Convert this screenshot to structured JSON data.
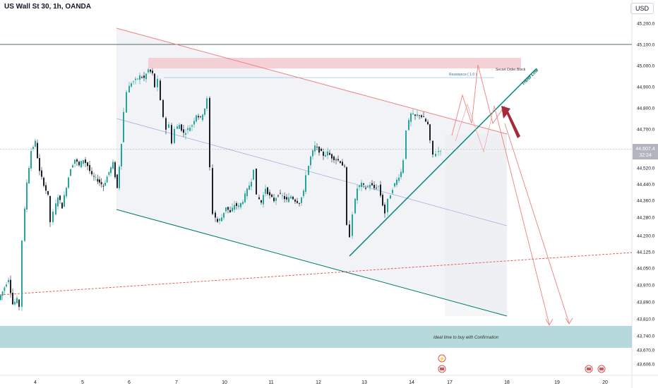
{
  "header": {
    "title": "US Wall St 30, 1h, OANDA",
    "currency": "USD"
  },
  "chart_data": {
    "type": "candlestick",
    "symbol": "US Wall St 30",
    "interval": "1h",
    "source": "OANDA",
    "ylim": [
      43560,
      45290
    ],
    "y_ticks": [
      "45,200.0",
      "45,100.0",
      "45,000.0",
      "44,900.0",
      "44,800.0",
      "44,700.0",
      "44,520.0",
      "44,440.0",
      "44,360.0",
      "44,280.0",
      "44,200.0",
      "44,125.0",
      "44,050.0",
      "43,970.0",
      "43,890.0",
      "43,810.0",
      "43,740.0",
      "43,670.0",
      "43,606.0"
    ],
    "x_ticks": [
      "4",
      "5",
      "6",
      "7",
      "10",
      "11",
      "12",
      "13",
      "14",
      "17",
      "18",
      "19",
      "20"
    ],
    "last_price": {
      "value": "44,607.4",
      "countdown": "32:24"
    },
    "horizontal_line": 45100,
    "price_path": [
      [
        0,
        43900
      ],
      [
        8,
        43960
      ],
      [
        14,
        44000
      ],
      [
        20,
        43880
      ],
      [
        26,
        43900
      ],
      [
        30,
        43870
      ],
      [
        34,
        44180
      ],
      [
        40,
        44450
      ],
      [
        46,
        44600
      ],
      [
        52,
        44640
      ],
      [
        58,
        44500
      ],
      [
        64,
        44440
      ],
      [
        70,
        44380
      ],
      [
        74,
        44260
      ],
      [
        78,
        44300
      ],
      [
        84,
        44380
      ],
      [
        90,
        44330
      ],
      [
        96,
        44430
      ],
      [
        102,
        44520
      ],
      [
        108,
        44560
      ],
      [
        114,
        44530
      ],
      [
        120,
        44560
      ],
      [
        126,
        44530
      ],
      [
        132,
        44480
      ],
      [
        140,
        44460
      ],
      [
        148,
        44430
      ],
      [
        156,
        44500
      ],
      [
        162,
        44540
      ],
      [
        168,
        44420
      ],
      [
        174,
        44640
      ],
      [
        178,
        44780
      ],
      [
        182,
        44880
      ],
      [
        188,
        44920
      ],
      [
        194,
        44930
      ],
      [
        200,
        44950
      ],
      [
        206,
        44940
      ],
      [
        212,
        44980
      ],
      [
        218,
        44960
      ],
      [
        222,
        44900
      ],
      [
        226,
        44930
      ],
      [
        230,
        44830
      ],
      [
        234,
        44760
      ],
      [
        238,
        44700
      ],
      [
        242,
        44720
      ],
      [
        246,
        44640
      ],
      [
        250,
        44700
      ],
      [
        256,
        44720
      ],
      [
        262,
        44680
      ],
      [
        268,
        44700
      ],
      [
        274,
        44720
      ],
      [
        280,
        44770
      ],
      [
        286,
        44750
      ],
      [
        292,
        44800
      ],
      [
        296,
        44840
      ],
      [
        300,
        44520
      ],
      [
        304,
        44300
      ],
      [
        310,
        44260
      ],
      [
        316,
        44280
      ],
      [
        322,
        44330
      ],
      [
        328,
        44300
      ],
      [
        334,
        44340
      ],
      [
        340,
        44330
      ],
      [
        346,
        44360
      ],
      [
        352,
        44410
      ],
      [
        358,
        44460
      ],
      [
        362,
        44520
      ],
      [
        366,
        44380
      ],
      [
        372,
        44350
      ],
      [
        378,
        44420
      ],
      [
        384,
        44380
      ],
      [
        390,
        44360
      ],
      [
        396,
        44390
      ],
      [
        402,
        44380
      ],
      [
        408,
        44360
      ],
      [
        414,
        44380
      ],
      [
        420,
        44360
      ],
      [
        426,
        44350
      ],
      [
        432,
        44400
      ],
      [
        436,
        44490
      ],
      [
        442,
        44570
      ],
      [
        448,
        44620
      ],
      [
        454,
        44600
      ],
      [
        460,
        44580
      ],
      [
        466,
        44590
      ],
      [
        472,
        44570
      ],
      [
        478,
        44560
      ],
      [
        484,
        44550
      ],
      [
        490,
        44520
      ],
      [
        494,
        44240
      ],
      [
        498,
        44200
      ],
      [
        502,
        44300
      ],
      [
        508,
        44420
      ],
      [
        514,
        44440
      ],
      [
        520,
        44420
      ],
      [
        526,
        44440
      ],
      [
        532,
        44420
      ],
      [
        538,
        44430
      ],
      [
        544,
        44340
      ],
      [
        548,
        44300
      ],
      [
        552,
        44360
      ],
      [
        558,
        44420
      ],
      [
        564,
        44460
      ],
      [
        570,
        44500
      ],
      [
        574,
        44560
      ],
      [
        578,
        44700
      ],
      [
        584,
        44770
      ],
      [
        590,
        44760
      ],
      [
        596,
        44770
      ],
      [
        602,
        44750
      ],
      [
        608,
        44720
      ],
      [
        612,
        44640
      ],
      [
        616,
        44580
      ],
      [
        620,
        44590
      ],
      [
        626,
        44607
      ]
    ],
    "annotations": [
      {
        "text": "Resistance ( 1.0 )"
      },
      {
        "text": "Secret Order Block"
      },
      {
        "text": "Trend Line"
      },
      {
        "text": "Ideal time to buy with Confirmation"
      }
    ],
    "grid": false,
    "legend": "none"
  }
}
